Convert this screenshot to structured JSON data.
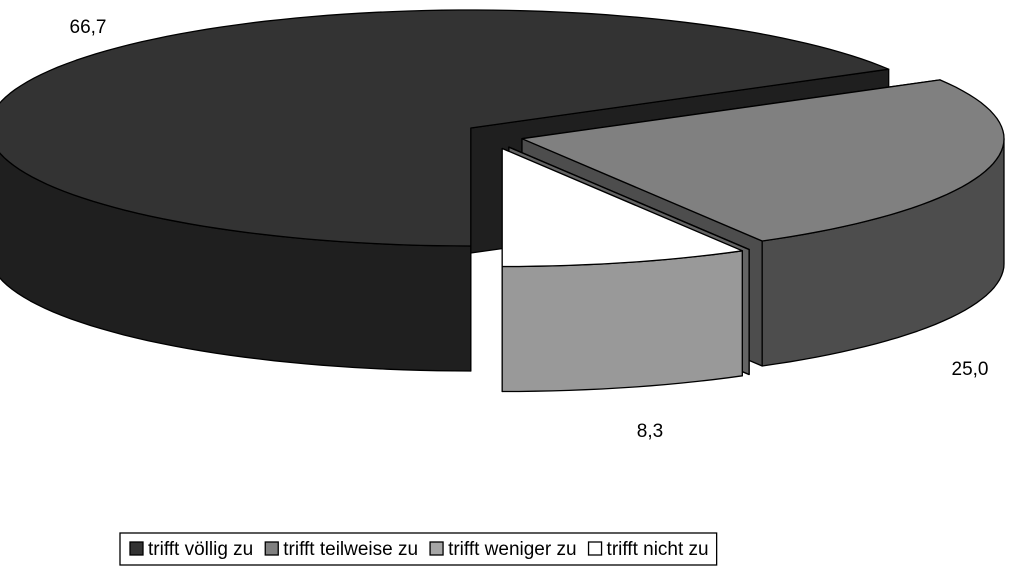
{
  "chart_data": {
    "type": "pie",
    "categories": [
      "trifft völlig zu",
      "trifft teilweise zu",
      "trifft weniger zu",
      "trifft nicht zu"
    ],
    "values": [
      66.7,
      25.0,
      0,
      8.3
    ],
    "value_labels": [
      "66,7",
      "25,0",
      null,
      "8,3"
    ],
    "colors": [
      "#333333",
      "#808080",
      "#a6a6a6",
      "#ffffff"
    ],
    "legend": "bottom"
  }
}
